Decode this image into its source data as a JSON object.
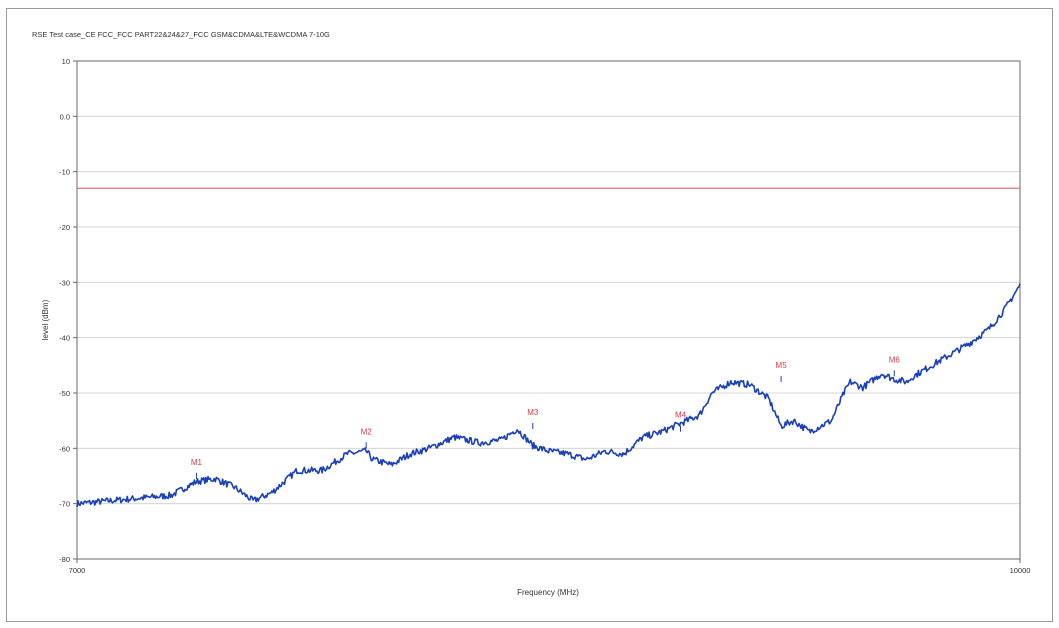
{
  "chart_data": {
    "type": "line",
    "title": "RSE Test case_CE FCC_FCC PART22&24&27_FCC GSM&CDMA&LTE&WCDMA 7-10G",
    "xlabel": "Frequency (MHz)",
    "ylabel": "level (dBm)",
    "xlim": [
      7000,
      10000
    ],
    "ylim": [
      -80,
      10
    ],
    "x_tick_labels": [
      "7000",
      "10000"
    ],
    "y_ticks": [
      10,
      0,
      -10,
      -20,
      -30,
      -40,
      -50,
      -60,
      -70,
      -80
    ],
    "y_tick_labels": [
      "10",
      "0.0",
      "-10",
      "-20",
      "-30",
      "-40",
      "-50",
      "-60",
      "-70",
      "-80"
    ],
    "grid": true,
    "limit_line": {
      "value": -13,
      "color": "#e0707a"
    },
    "series": [
      {
        "color": "#1a3fb8",
        "x": [
          7000,
          7100,
          7200,
          7300,
          7380,
          7440,
          7500,
          7560,
          7620,
          7700,
          7780,
          7860,
          7920,
          7940,
          8000,
          8060,
          8120,
          8200,
          8280,
          8350,
          8400,
          8450,
          8500,
          8560,
          8620,
          8680,
          8740,
          8800,
          8860,
          8920,
          8980,
          9020,
          9080,
          9140,
          9200,
          9240,
          9280,
          9330,
          9400,
          9440,
          9460,
          9500,
          9560,
          9600,
          9640,
          9660,
          9720,
          9780,
          9840,
          9900,
          9950,
          10000
        ],
        "y": [
          -70,
          -69.5,
          -69,
          -68.5,
          -66,
          -65.5,
          -67,
          -69.5,
          -68,
          -64,
          -64,
          -61,
          -60.5,
          -62,
          -63,
          -61,
          -60,
          -58,
          -59,
          -58.5,
          -56.5,
          -59.5,
          -60.5,
          -61,
          -62,
          -60.5,
          -61,
          -58,
          -57,
          -55.5,
          -54,
          -50,
          -48,
          -48.5,
          -51,
          -56,
          -55,
          -57,
          -55,
          -50,
          -48,
          -49,
          -46.5,
          -47.5,
          -48,
          -47,
          -45,
          -43,
          -41,
          -38.5,
          -35,
          -30.5
        ]
      }
    ],
    "markers": [
      {
        "label": "M1",
        "x": 7380,
        "y": -65.5
      },
      {
        "label": "M2",
        "x": 7920,
        "y": -60
      },
      {
        "label": "M3",
        "x": 8450,
        "y": -56.5
      },
      {
        "label": "M4",
        "x": 8920,
        "y": -57
      },
      {
        "label": "M5",
        "x": 9240,
        "y": -48
      },
      {
        "label": "M6",
        "x": 9600,
        "y": -47
      }
    ]
  }
}
